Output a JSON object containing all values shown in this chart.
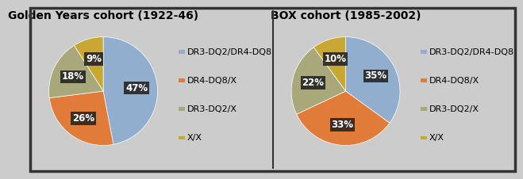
{
  "chart1": {
    "title": "Golden Years cohort (1922-46)",
    "values": [
      47,
      26,
      18,
      9
    ],
    "labels": [
      "47%",
      "26%",
      "18%",
      "9%"
    ],
    "colors": [
      "#92AECF",
      "#E07B39",
      "#A8A87A",
      "#C8A832"
    ],
    "startangle": 90
  },
  "chart2": {
    "title": "BOX cohort (1985-2002)",
    "values": [
      35,
      33,
      22,
      10
    ],
    "labels": [
      "35%",
      "33%",
      "22%",
      "10%"
    ],
    "colors": [
      "#92AECF",
      "#E07B39",
      "#A8A87A",
      "#C8A832"
    ],
    "startangle": 90
  },
  "legend_labels": [
    "DR3-DQ2/DR4-DQ8",
    "DR4-DQ8/X",
    "DR3-DQ2/X",
    "X/X"
  ],
  "legend_colors": [
    "#92AECF",
    "#E07B39",
    "#A8A87A",
    "#C8A832"
  ],
  "bg_color": "#CCCCCC",
  "panel_bg": "#D0D0D0",
  "border_color": "#333333",
  "label_fontsize": 8.5,
  "title_fontsize": 10,
  "legend_fontsize": 8
}
